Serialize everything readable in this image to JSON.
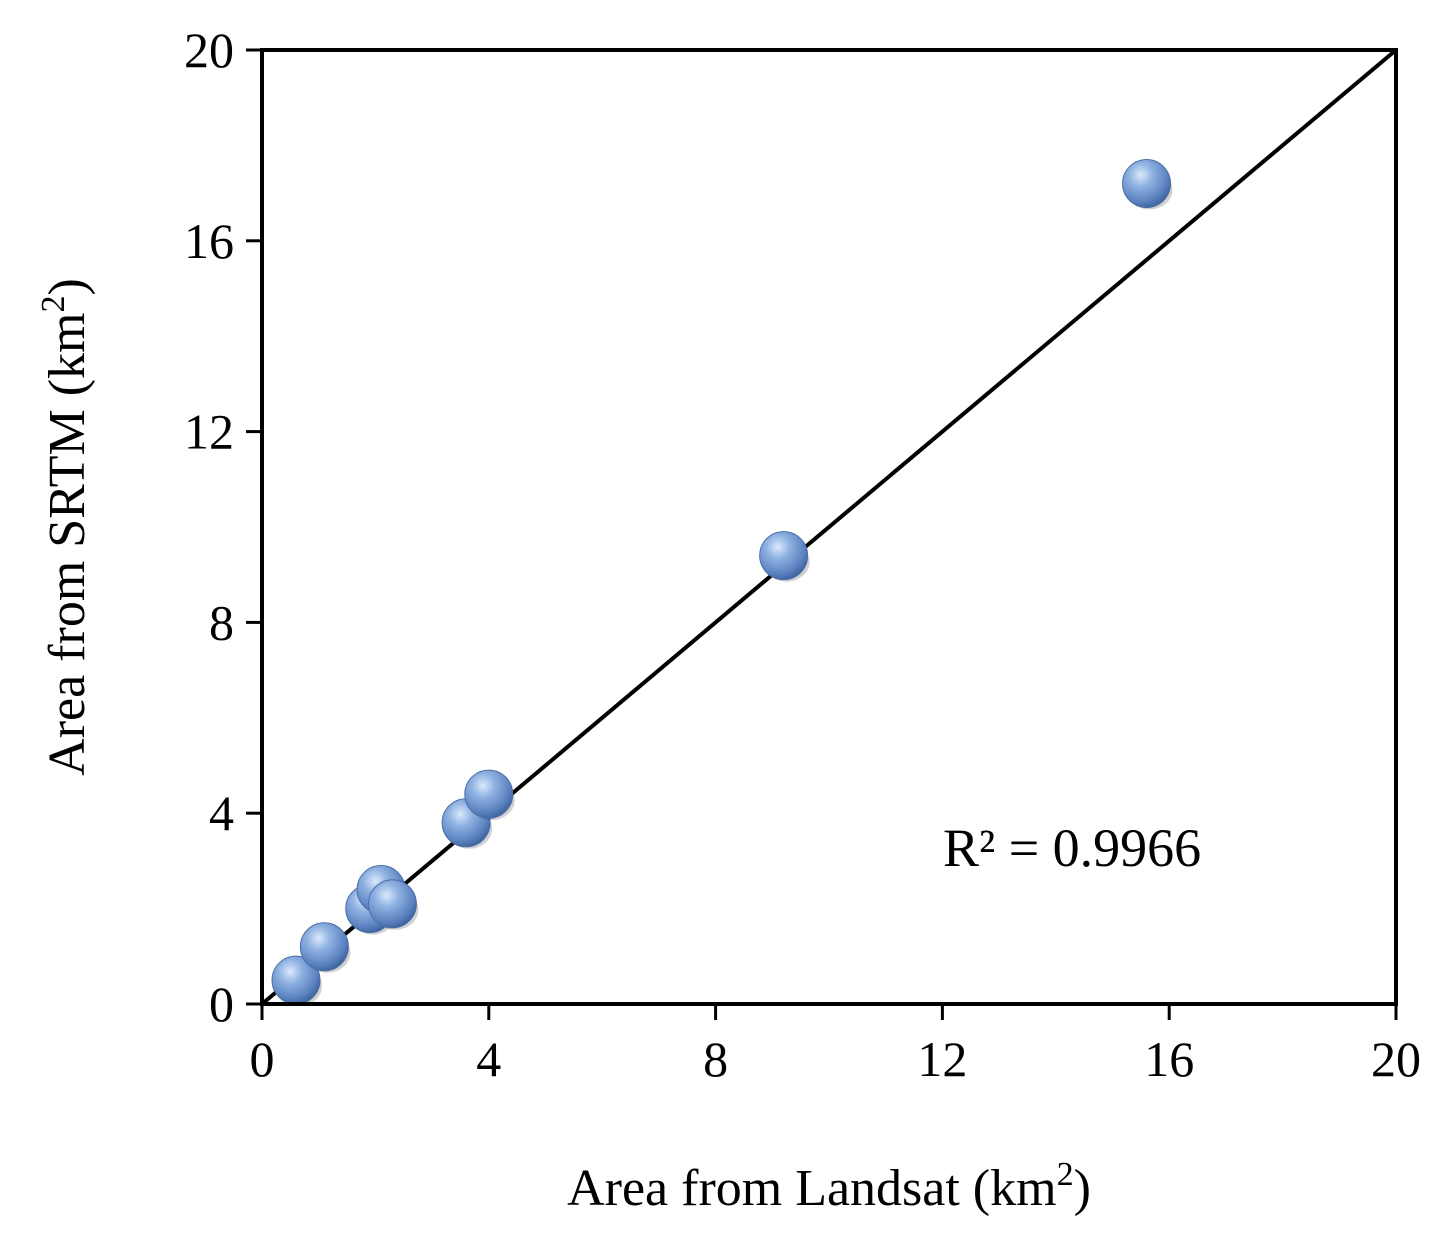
{
  "chart_data": {
    "type": "scatter",
    "xlabel_main": "Area from Landsat (km",
    "xlabel_sup": "2",
    "xlabel_end": ")",
    "ylabel_main": "Area from SRTM (km",
    "ylabel_sup": "2",
    "ylabel_end": ")",
    "xlim": [
      0,
      20
    ],
    "ylim": [
      0,
      20
    ],
    "x_ticks": [
      0,
      4,
      8,
      12,
      16,
      20
    ],
    "y_ticks": [
      0,
      4,
      8,
      12,
      16,
      20
    ],
    "grid": false,
    "annotation": "R² = 0.9966",
    "reference_line": {
      "x": [
        0,
        20
      ],
      "y": [
        0,
        20
      ]
    },
    "marker_color": "#6f98d3",
    "series": [
      {
        "points": [
          {
            "x": 0.6,
            "y": 0.5
          },
          {
            "x": 1.1,
            "y": 1.2
          },
          {
            "x": 1.9,
            "y": 2.0
          },
          {
            "x": 2.1,
            "y": 2.4
          },
          {
            "x": 2.3,
            "y": 2.1
          },
          {
            "x": 3.6,
            "y": 3.8
          },
          {
            "x": 4.0,
            "y": 4.4
          },
          {
            "x": 9.2,
            "y": 9.4
          },
          {
            "x": 15.6,
            "y": 17.2
          }
        ]
      }
    ]
  }
}
